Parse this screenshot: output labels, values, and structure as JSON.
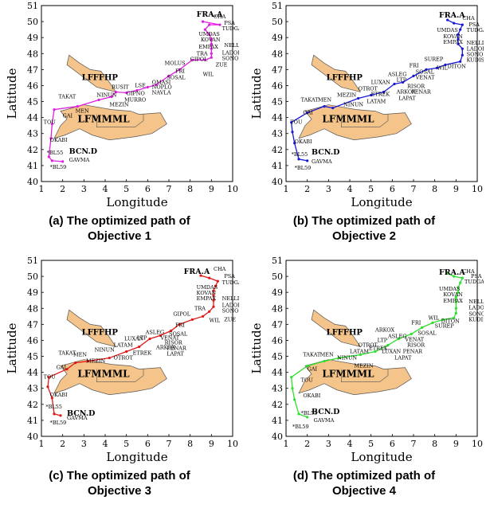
{
  "chart_data": [
    {
      "type": "line",
      "caption_line1": "(a) The optimized path of",
      "caption_line2": "Objective 1",
      "xlabel": "Longitude",
      "ylabel": "Latitude",
      "xlim": [
        1,
        10
      ],
      "ylim": [
        40,
        51
      ],
      "xticks": [
        "1",
        "2",
        "3",
        "4",
        "5",
        "6",
        "7",
        "8",
        "9",
        "10"
      ],
      "yticks": [
        "40",
        "41",
        "42",
        "43",
        "44",
        "45",
        "46",
        "47",
        "48",
        "49",
        "50",
        "51"
      ],
      "color": "#e020e0",
      "series": [
        {
          "x": [
            2.0,
            1.5,
            1.35,
            1.45,
            1.5,
            1.6,
            2.7,
            3.7,
            4.3,
            4.5,
            5.0,
            5.5,
            6.0,
            6.4,
            7.0,
            7.5,
            8.1,
            8.7,
            9.0,
            9.0,
            9.0,
            9.0,
            9.0,
            8.9,
            8.7,
            8.9,
            9.4,
            8.6,
            8.6
          ],
          "y": [
            41.25,
            41.3,
            41.55,
            42.7,
            43.6,
            44.5,
            44.7,
            45.1,
            45.3,
            45.6,
            45.55,
            45.7,
            45.9,
            46.05,
            46.6,
            47.0,
            47.6,
            47.6,
            47.75,
            48.0,
            48.3,
            48.6,
            48.9,
            49.2,
            49.5,
            49.8,
            49.8,
            50.0,
            50.0
          ]
        }
      ],
      "labels": [
        "CHA",
        "PSA",
        "TUDGA",
        "UMDAS",
        "KOVAN",
        "NELLI",
        "EMPAX",
        "LADOL",
        "TRA",
        "SONOM",
        "MOLUS",
        "GIPOL",
        "ZUE",
        "FRI",
        "WIL",
        "SOSAL",
        "OMASI",
        "LSE",
        "NOPLO",
        "GIPNO",
        "NAVLA",
        "RUSIT",
        "MURRO",
        "NINUN",
        "MEZIN",
        "TAKAT",
        "MEN",
        "GAI",
        "TOU",
        "OKABI",
        "*BL55",
        "GAVMA",
        "*BL59"
      ],
      "points_named": [
        "FRA.A",
        "BCN.D"
      ],
      "regions": [
        "LFFFHP",
        "LFMMML"
      ]
    },
    {
      "type": "line",
      "caption_line1": "(b) The optimized path of",
      "caption_line2": "Objective 2",
      "xlabel": "Longitude",
      "ylabel": "Latitude",
      "xlim": [
        1,
        10
      ],
      "ylim": [
        40,
        51
      ],
      "xticks": [
        "1",
        "2",
        "3",
        "4",
        "5",
        "6",
        "7",
        "8",
        "9",
        "10"
      ],
      "yticks": [
        "40",
        "41",
        "42",
        "43",
        "44",
        "45",
        "46",
        "47",
        "48",
        "49",
        "50",
        "51"
      ],
      "color": "#1818d8",
      "series": [
        {
          "x": [
            2.0,
            1.6,
            1.4,
            1.3,
            1.25,
            2.0,
            2.8,
            3.2,
            4.4,
            5.0,
            5.6,
            6.1,
            6.5,
            7.0,
            7.6,
            8.1,
            8.5,
            9.2,
            9.3,
            9.3,
            9.1,
            9.1,
            9.1,
            9.2,
            9.3,
            8.9,
            8.6
          ],
          "y": [
            41.3,
            41.4,
            42.4,
            43.1,
            43.7,
            44.3,
            44.7,
            44.6,
            45.2,
            45.4,
            45.6,
            46.1,
            46.2,
            46.6,
            47.0,
            47.1,
            47.3,
            47.5,
            47.9,
            48.3,
            48.6,
            48.9,
            49.2,
            49.5,
            49.8,
            49.9,
            50.1
          ]
        }
      ],
      "labels": [
        "CHA",
        "PSA",
        "TUDGA",
        "UMDAS",
        "KOVAN",
        "EMPAX",
        "NELLI",
        "LADOL",
        "SONOM",
        "KUDIS",
        "DITON",
        "SUREP",
        "WIL",
        "FRI",
        "SOSAL",
        "VENAT",
        "ASLEG",
        "LTP",
        "LUXAN",
        "RISOR",
        "ARKOX",
        "ETREK",
        "PENAR",
        "LAPAT",
        "OTROT",
        "MEZIN",
        "NINUN",
        "LATAM",
        "TAKAT",
        "MEN",
        "GAI",
        "TOU",
        "OKABI",
        "*BL55",
        "GAVMA",
        "*BL59"
      ],
      "points_named": [
        "FRA.A",
        "BCN.D"
      ],
      "regions": [
        "LFFFHP",
        "LFMMML"
      ]
    },
    {
      "type": "line",
      "caption_line1": "(c) The optimized path of",
      "caption_line2": "Objective 3",
      "xlabel": "Longitude",
      "ylabel": "Latitude",
      "xlim": [
        1,
        10
      ],
      "ylim": [
        40,
        51
      ],
      "xticks": [
        "1",
        "2",
        "3",
        "4",
        "5",
        "6",
        "7",
        "8",
        "9",
        "10"
      ],
      "yticks": [
        "40",
        "41",
        "42",
        "43",
        "44",
        "45",
        "46",
        "47",
        "48",
        "49",
        "50",
        "51"
      ],
      "color": "#e01818",
      "series": [
        {
          "x": [
            1.9,
            1.6,
            1.5,
            1.3,
            1.35,
            2.2,
            2.6,
            3.2,
            4.2,
            5.0,
            5.6,
            6.1,
            6.6,
            7.1,
            7.5,
            8.1,
            8.6,
            8.9,
            9.1,
            9.1,
            9.1,
            9.1,
            9.2,
            9.3,
            8.9,
            8.5
          ],
          "y": [
            41.3,
            41.4,
            42.4,
            43.1,
            43.7,
            44.2,
            44.6,
            44.7,
            44.9,
            45.3,
            45.6,
            46.1,
            46.3,
            46.6,
            47.0,
            47.3,
            47.5,
            47.8,
            48.1,
            48.5,
            48.8,
            49.1,
            49.4,
            49.7,
            49.9,
            50.05
          ]
        }
      ],
      "labels": [
        "CHA",
        "PSA",
        "TUDGA",
        "UMDAS",
        "KOVAN",
        "EMPAX",
        "NELLI",
        "LADOL",
        "SONOM",
        "TRA",
        "GIPOL",
        "WIL",
        "ZUE",
        "FRI",
        "SOSAL",
        "VENAT",
        "ASLEG",
        "LTP",
        "RISOR",
        "LUXAN",
        "ARKOX",
        "PENAR",
        "ETREK",
        "LAPAT",
        "LATAM",
        "NINUN",
        "OTROT",
        "MEZIN",
        "TAKAT",
        "MEN",
        "GAI",
        "TOU",
        "OKABI",
        "*BL55",
        "GAVMA",
        "*BL59"
      ],
      "points_named": [
        "FRA.A",
        "BCN.D"
      ],
      "regions": [
        "LFFFHP",
        "LFMMML"
      ]
    },
    {
      "type": "line",
      "caption_line1": "(d) The optimized path of",
      "caption_line2": "Objective 4",
      "xlabel": "Longitude",
      "ylabel": "Latitude",
      "xlim": [
        1,
        10
      ],
      "ylim": [
        40,
        51
      ],
      "xticks": [
        "1",
        "2",
        "3",
        "4",
        "5",
        "6",
        "7",
        "8",
        "9",
        "10"
      ],
      "yticks": [
        "40",
        "41",
        "42",
        "43",
        "44",
        "45",
        "46",
        "47",
        "48",
        "49",
        "50",
        "51"
      ],
      "color": "#2ee02e",
      "series": [
        {
          "x": [
            2.0,
            1.6,
            1.4,
            1.3,
            1.25,
            2.0,
            2.8,
            3.5,
            4.5,
            5.2,
            5.8,
            6.3,
            6.9,
            7.4,
            7.9,
            8.4,
            8.9,
            9.0,
            9.0,
            9.0,
            9.0,
            9.1,
            9.1,
            9.2,
            9.3,
            8.9,
            8.6
          ],
          "y": [
            41.2,
            41.4,
            42.3,
            43.0,
            43.7,
            44.4,
            44.7,
            44.9,
            45.1,
            45.3,
            45.7,
            46.1,
            46.4,
            46.8,
            47.1,
            47.3,
            47.4,
            47.7,
            48.0,
            48.4,
            48.7,
            49.0,
            49.3,
            49.6,
            49.9,
            50.0,
            50.2
          ]
        }
      ],
      "labels": [
        "CHA",
        "PSA",
        "TUDGA",
        "UMDAS",
        "KOVAN",
        "EMPAX",
        "NELLI",
        "LADOL",
        "SONOM",
        "KUDIS",
        "DITON",
        "SUREP",
        "WIL",
        "FRI",
        "SOSAL",
        "VENAT",
        "ASLEG",
        "ARKOX",
        "LTP",
        "ETREK",
        "RISOR",
        "LUXAN",
        "PENAR",
        "LAPAT",
        "OTROT",
        "LATAM",
        "NINUN",
        "MEZIN",
        "TAKAT",
        "MEN",
        "GAI",
        "TOU",
        "OKABI",
        "*BL55",
        "GAVMA",
        "*BL59"
      ],
      "points_named": [
        "FRA.A",
        "BCN.D"
      ],
      "regions": [
        "LFFFHP",
        "LFMMML"
      ]
    }
  ]
}
